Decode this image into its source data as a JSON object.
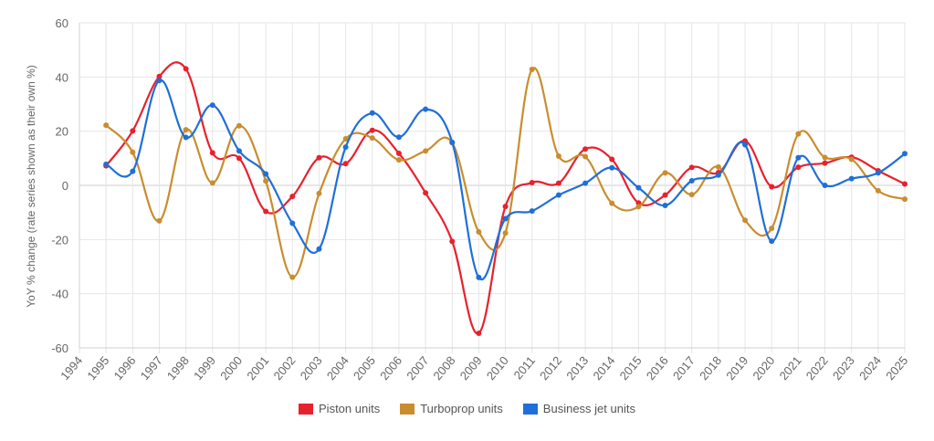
{
  "chart_data": {
    "type": "line",
    "ylabel": "YoY % change (rate series shown as their own %)",
    "ylim": [
      -60,
      60
    ],
    "yticks": [
      -60,
      -40,
      -20,
      0,
      20,
      40,
      60
    ],
    "categories": [
      "1994",
      "1995",
      "1996",
      "1997",
      "1998",
      "1999",
      "2000",
      "2001",
      "2002",
      "2003",
      "2004",
      "2005",
      "2006",
      "2007",
      "2008",
      "2009",
      "2010",
      "2011",
      "2012",
      "2013",
      "2014",
      "2015",
      "2016",
      "2017",
      "2018",
      "2019",
      "2020",
      "2021",
      "2022",
      "2023",
      "2024",
      "2025"
    ],
    "grid": true,
    "legend_position": "bottom",
    "series": [
      {
        "name": "Piston units",
        "color": "#e8212e",
        "values": [
          null,
          7.2,
          20.1,
          40.2,
          43.0,
          12.0,
          10.0,
          -9.6,
          -4.1,
          10.2,
          8.0,
          20.3,
          11.8,
          -2.8,
          -20.7,
          -54.6,
          -7.8,
          1.0,
          0.8,
          13.4,
          9.6,
          -6.5,
          -3.6,
          6.6,
          4.7,
          16.4,
          -0.5,
          6.7,
          8.2,
          10.4,
          5.4,
          0.5
        ]
      },
      {
        "name": "Turboprop units",
        "color": "#c98d2f",
        "values": [
          null,
          22.2,
          12.2,
          -13.1,
          20.5,
          0.9,
          22.0,
          1.6,
          -33.9,
          -3.0,
          17.2,
          17.5,
          9.4,
          12.7,
          15.7,
          -17.2,
          -17.6,
          42.8,
          10.8,
          10.6,
          -6.6,
          -7.9,
          4.6,
          -3.4,
          6.8,
          -12.9,
          -15.9,
          19.0,
          10.3,
          9.6,
          -2.0,
          -5.1
        ]
      },
      {
        "name": "Business jet units",
        "color": "#1f6fd8",
        "values": [
          null,
          7.8,
          5.2,
          38.7,
          17.7,
          29.6,
          12.7,
          4.2,
          -14.0,
          -23.5,
          14.1,
          26.7,
          17.8,
          28.1,
          15.9,
          -34.0,
          -12.3,
          -9.5,
          -3.6,
          0.8,
          6.5,
          -0.9,
          -7.4,
          1.7,
          3.8,
          15.0,
          -20.6,
          10.2,
          0.0,
          2.5,
          4.6,
          11.7
        ]
      }
    ]
  }
}
